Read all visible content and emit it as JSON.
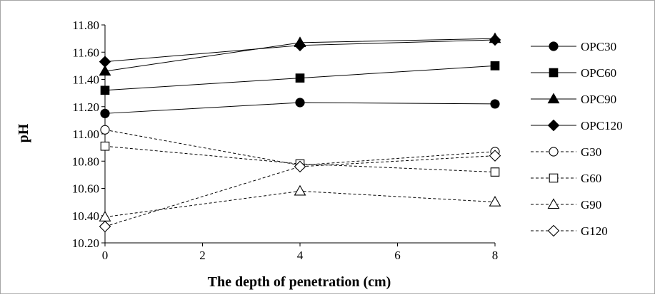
{
  "chart_data": {
    "type": "line",
    "xlabel": "The depth of penetration (cm)",
    "ylabel": "pH",
    "xlim": [
      0,
      8
    ],
    "ylim": [
      10.2,
      11.8
    ],
    "x_ticks": [
      "0",
      "2",
      "4",
      "6",
      "8"
    ],
    "y_ticks": [
      "10.20",
      "10.40",
      "10.60",
      "10.80",
      "11.00",
      "11.20",
      "11.40",
      "11.60",
      "11.80"
    ],
    "grid": false,
    "legend_position": "right",
    "series": [
      {
        "name": "OPC30",
        "x": [
          0,
          4,
          8
        ],
        "values": [
          11.15,
          11.23,
          11.22
        ],
        "marker": "circle",
        "filled": true,
        "line": "solid"
      },
      {
        "name": "OPC60",
        "x": [
          0,
          4,
          8
        ],
        "values": [
          11.32,
          11.41,
          11.5
        ],
        "marker": "square",
        "filled": true,
        "line": "solid"
      },
      {
        "name": "OPC90",
        "x": [
          0,
          4,
          8
        ],
        "values": [
          11.46,
          11.67,
          11.7
        ],
        "marker": "triangle",
        "filled": true,
        "line": "solid"
      },
      {
        "name": "OPC120",
        "x": [
          0,
          4,
          8
        ],
        "values": [
          11.53,
          11.65,
          11.69
        ],
        "marker": "diamond",
        "filled": true,
        "line": "solid"
      },
      {
        "name": "G30",
        "x": [
          0,
          4,
          8
        ],
        "values": [
          11.03,
          10.77,
          10.87
        ],
        "marker": "circle",
        "filled": false,
        "line": "dashed"
      },
      {
        "name": "G60",
        "x": [
          0,
          4,
          8
        ],
        "values": [
          10.91,
          10.78,
          10.72
        ],
        "marker": "square",
        "filled": false,
        "line": "dashed"
      },
      {
        "name": "G90",
        "x": [
          0,
          4,
          8
        ],
        "values": [
          10.39,
          10.58,
          10.5
        ],
        "marker": "triangle",
        "filled": false,
        "line": "dashed"
      },
      {
        "name": "G120",
        "x": [
          0,
          4,
          8
        ],
        "values": [
          10.32,
          10.76,
          10.84
        ],
        "marker": "diamond",
        "filled": false,
        "line": "dashed"
      }
    ]
  }
}
